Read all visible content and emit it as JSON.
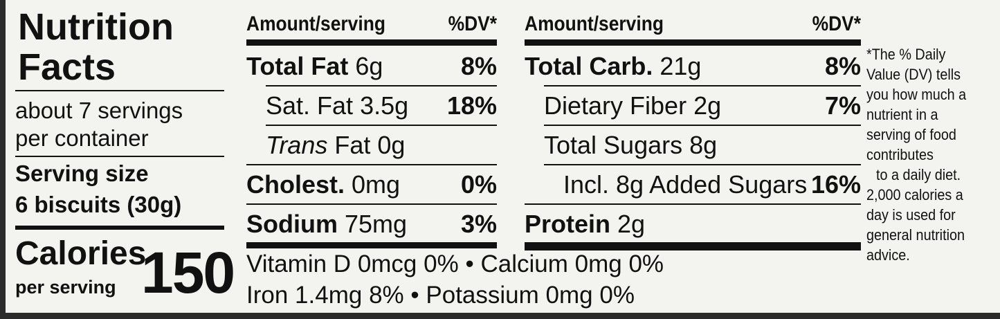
{
  "panel": {
    "title_line1": "Nutrition",
    "title_line2": "Facts",
    "servings_line1": "about 7 servings",
    "servings_line2": "per container",
    "serving_size_label": "Serving size",
    "serving_size": "6 biscuits (30g)",
    "calories_label": "Calories",
    "per_serving": "per serving",
    "calories": "150"
  },
  "columns": [
    {
      "header_amount": "Amount/serving",
      "header_dv": "%DV*",
      "rows": [
        {
          "name": "Total Fat",
          "amount": "6g",
          "dv": "8%",
          "bold": true,
          "indent": 0
        },
        {
          "name": "Sat. Fat",
          "amount": "3.5g",
          "dv": "18%",
          "bold": false,
          "indent": 1
        },
        {
          "prefix": "Trans",
          "name": "Fat",
          "amount": "0g",
          "bold": false,
          "indent": 1
        },
        {
          "name": "Cholest.",
          "amount": "0mg",
          "dv": "0%",
          "bold": true,
          "indent": 0
        },
        {
          "name": "Sodium",
          "amount": "75mg",
          "dv": "3%",
          "bold": true,
          "indent": 0
        }
      ]
    },
    {
      "header_amount": "Amount/serving",
      "header_dv": "%DV*",
      "rows": [
        {
          "name": "Total Carb.",
          "amount": "21g",
          "dv": "8%",
          "bold": true,
          "indent": 0
        },
        {
          "name": "Dietary Fiber",
          "amount": "2g",
          "dv": "7%",
          "bold": false,
          "indent": 1
        },
        {
          "name": "Total Sugars",
          "amount": "8g",
          "bold": false,
          "indent": 1
        },
        {
          "name": "Incl. 8g Added Sugars",
          "dv": "16%",
          "bold": false,
          "indent": 2
        },
        {
          "name": "Protein",
          "amount": "2g",
          "bold": true,
          "indent": 0
        }
      ]
    }
  ],
  "micronutrients": {
    "separator": "•",
    "lines": [
      [
        {
          "name": "Vitamin D",
          "amount": "0mcg",
          "dv": "0%"
        },
        {
          "name": "Calcium",
          "amount": "0mg",
          "dv": "0%"
        }
      ],
      [
        {
          "name": "Iron",
          "amount": "1.4mg",
          "dv": "8%"
        },
        {
          "name": "Potassium",
          "amount": "0mg",
          "dv": "0%"
        }
      ]
    ]
  },
  "footnote": [
    "*The % Daily",
    "Value (DV) tells",
    "you how much a",
    "nutrient in a",
    "serving of food",
    "contributes",
    "to a daily diet.",
    "2,000 calories a",
    "day is used for",
    "general nutrition",
    "advice."
  ]
}
